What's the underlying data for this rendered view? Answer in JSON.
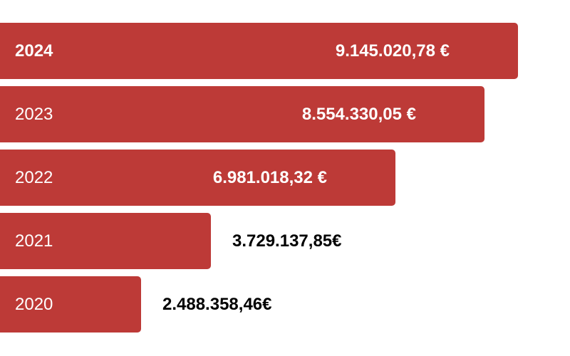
{
  "chart_data": {
    "type": "bar",
    "orientation": "horizontal",
    "categories": [
      "2024",
      "2023",
      "2022",
      "2021",
      "2020"
    ],
    "values": [
      9145020.78,
      8554330.05,
      6981018.32,
      3729137.85,
      2488358.46
    ],
    "value_labels": [
      "9.145.020,78 €",
      "8.554.330,05 €",
      "6.981.018,32 €",
      "3.729.137,85€",
      "2.488.358,46€"
    ],
    "highlighted_category": "2024",
    "title": "",
    "xlabel": "",
    "ylabel": "",
    "grid": false,
    "legend": "none",
    "bar_color": "#bd3a37",
    "label_color_inside": "#ffffff",
    "label_color_outside": "#000000"
  }
}
